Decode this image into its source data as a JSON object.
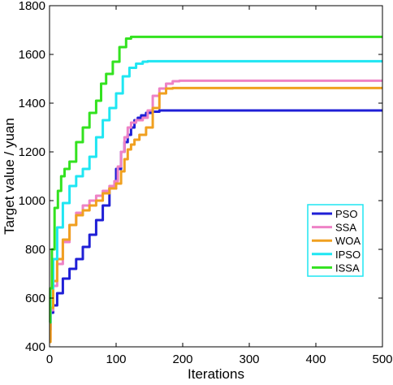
{
  "chart_data": {
    "type": "line",
    "title": "",
    "xlabel": "Iterations",
    "ylabel": "Target value / yuan",
    "xlim": [
      0,
      500
    ],
    "ylim": [
      400,
      1800
    ],
    "xticks": [
      0,
      100,
      200,
      300,
      400,
      500
    ],
    "yticks": [
      400,
      600,
      800,
      1000,
      1200,
      1400,
      1600,
      1800
    ],
    "grid": false,
    "legend_position": "right",
    "series": [
      {
        "name": "PSO",
        "color": "#1f1fd6",
        "points": [
          [
            0,
            470
          ],
          [
            3,
            540
          ],
          [
            8,
            570
          ],
          [
            15,
            620
          ],
          [
            25,
            680
          ],
          [
            35,
            720
          ],
          [
            45,
            760
          ],
          [
            55,
            810
          ],
          [
            65,
            860
          ],
          [
            75,
            920
          ],
          [
            85,
            980
          ],
          [
            95,
            1050
          ],
          [
            105,
            1130
          ],
          [
            110,
            1200
          ],
          [
            115,
            1240
          ],
          [
            120,
            1270
          ],
          [
            125,
            1300
          ],
          [
            130,
            1330
          ],
          [
            135,
            1340
          ],
          [
            140,
            1350
          ],
          [
            150,
            1360
          ],
          [
            160,
            1365
          ],
          [
            170,
            1370
          ],
          [
            200,
            1370
          ],
          [
            300,
            1370
          ],
          [
            400,
            1370
          ],
          [
            500,
            1370
          ]
        ]
      },
      {
        "name": "SSA",
        "color": "#ee82c6",
        "points": [
          [
            0,
            430
          ],
          [
            3,
            550
          ],
          [
            8,
            650
          ],
          [
            15,
            740
          ],
          [
            25,
            830
          ],
          [
            35,
            900
          ],
          [
            45,
            950
          ],
          [
            55,
            980
          ],
          [
            65,
            1000
          ],
          [
            75,
            1020
          ],
          [
            85,
            1040
          ],
          [
            95,
            1060
          ],
          [
            100,
            1080
          ],
          [
            105,
            1140
          ],
          [
            110,
            1200
          ],
          [
            115,
            1260
          ],
          [
            120,
            1300
          ],
          [
            125,
            1320
          ],
          [
            135,
            1330
          ],
          [
            145,
            1340
          ],
          [
            150,
            1370
          ],
          [
            160,
            1430
          ],
          [
            170,
            1460
          ],
          [
            180,
            1480
          ],
          [
            190,
            1490
          ],
          [
            200,
            1492
          ],
          [
            300,
            1492
          ],
          [
            400,
            1492
          ],
          [
            500,
            1492
          ]
        ]
      },
      {
        "name": "WOA",
        "color": "#f0a020",
        "points": [
          [
            0,
            420
          ],
          [
            3,
            560
          ],
          [
            8,
            670
          ],
          [
            15,
            760
          ],
          [
            25,
            840
          ],
          [
            35,
            900
          ],
          [
            45,
            940
          ],
          [
            55,
            960
          ],
          [
            65,
            980
          ],
          [
            75,
            1000
          ],
          [
            85,
            1030
          ],
          [
            95,
            1050
          ],
          [
            105,
            1070
          ],
          [
            110,
            1120
          ],
          [
            115,
            1170
          ],
          [
            120,
            1210
          ],
          [
            125,
            1230
          ],
          [
            130,
            1250
          ],
          [
            140,
            1270
          ],
          [
            150,
            1300
          ],
          [
            160,
            1380
          ],
          [
            170,
            1440
          ],
          [
            180,
            1460
          ],
          [
            190,
            1462
          ],
          [
            200,
            1462
          ],
          [
            300,
            1462
          ],
          [
            400,
            1462
          ],
          [
            500,
            1462
          ]
        ]
      },
      {
        "name": "IPSO",
        "color": "#1fe6f2",
        "points": [
          [
            0,
            500
          ],
          [
            3,
            640
          ],
          [
            8,
            760
          ],
          [
            15,
            890
          ],
          [
            25,
            990
          ],
          [
            35,
            1060
          ],
          [
            45,
            1100
          ],
          [
            55,
            1130
          ],
          [
            65,
            1180
          ],
          [
            75,
            1260
          ],
          [
            85,
            1330
          ],
          [
            95,
            1380
          ],
          [
            105,
            1440
          ],
          [
            115,
            1510
          ],
          [
            125,
            1545
          ],
          [
            135,
            1562
          ],
          [
            145,
            1570
          ],
          [
            150,
            1572
          ],
          [
            200,
            1572
          ],
          [
            300,
            1572
          ],
          [
            400,
            1572
          ],
          [
            500,
            1572
          ]
        ]
      },
      {
        "name": "ISSA",
        "color": "#33e21f",
        "points": [
          [
            0,
            500
          ],
          [
            2,
            640
          ],
          [
            5,
            800
          ],
          [
            10,
            970
          ],
          [
            15,
            1040
          ],
          [
            20,
            1100
          ],
          [
            25,
            1130
          ],
          [
            35,
            1160
          ],
          [
            45,
            1240
          ],
          [
            55,
            1300
          ],
          [
            65,
            1360
          ],
          [
            75,
            1410
          ],
          [
            80,
            1480
          ],
          [
            90,
            1520
          ],
          [
            100,
            1570
          ],
          [
            110,
            1630
          ],
          [
            120,
            1665
          ],
          [
            125,
            1672
          ],
          [
            200,
            1672
          ],
          [
            300,
            1672
          ],
          [
            400,
            1672
          ],
          [
            500,
            1672
          ]
        ]
      }
    ]
  }
}
